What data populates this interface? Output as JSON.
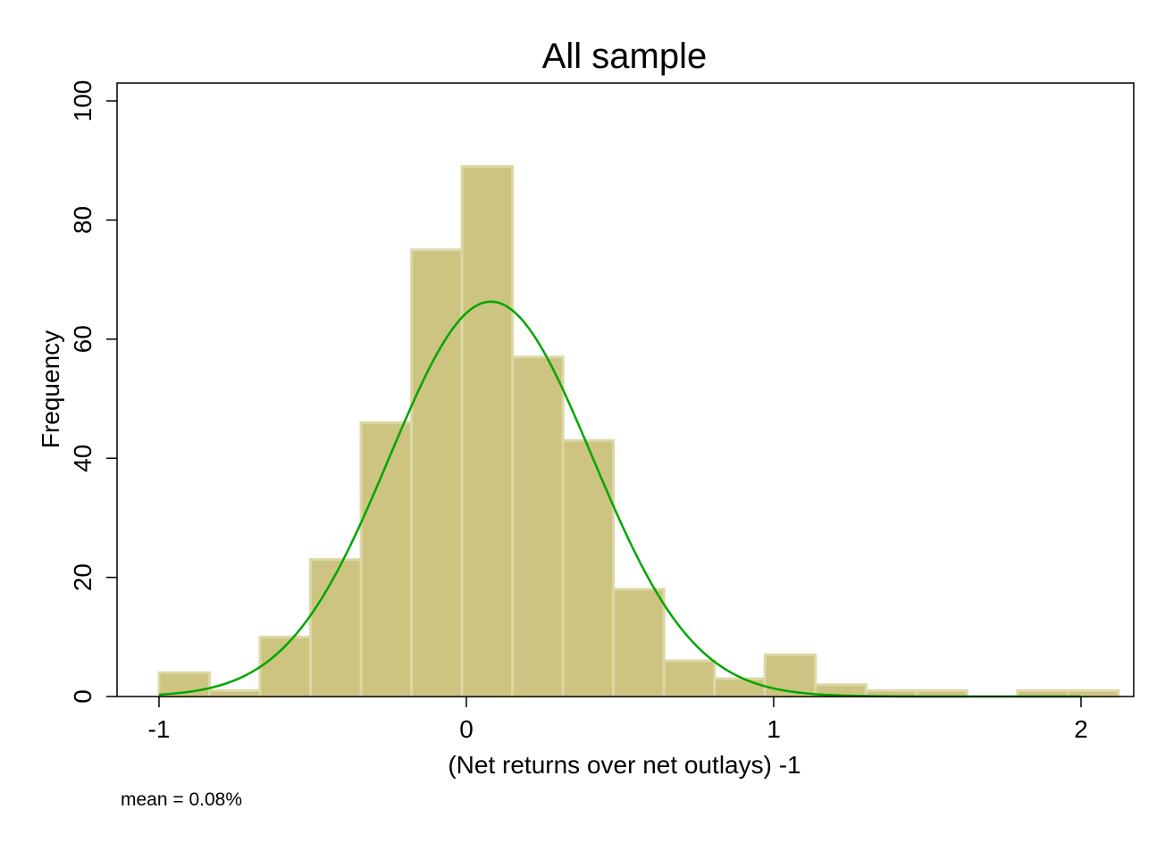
{
  "chart_data": {
    "type": "bar",
    "title": "All sample",
    "xlabel": "(Net returns over net outlays) -1",
    "ylabel": "Frequency",
    "note": "mean = 0.08%",
    "xlim": [
      -1.14,
      2.17
    ],
    "ylim": [
      0,
      103
    ],
    "x_ticks": [
      -1,
      0,
      1,
      2
    ],
    "x_tick_labels": [
      "-1",
      "0",
      "1",
      "2"
    ],
    "y_ticks": [
      0,
      20,
      40,
      60,
      80,
      100
    ],
    "y_tick_labels": [
      "0",
      "20",
      "40",
      "60",
      "80",
      "100"
    ],
    "bin_width": 0.1643,
    "bins": [
      {
        "start": -1.0,
        "end": -0.8357,
        "frequency": 4
      },
      {
        "start": -0.8357,
        "end": -0.6714,
        "frequency": 1
      },
      {
        "start": -0.6714,
        "end": -0.5071,
        "frequency": 10
      },
      {
        "start": -0.5071,
        "end": -0.3428,
        "frequency": 23
      },
      {
        "start": -0.3428,
        "end": -0.1785,
        "frequency": 46
      },
      {
        "start": -0.1785,
        "end": -0.0142,
        "frequency": 75
      },
      {
        "start": -0.0142,
        "end": 0.1501,
        "frequency": 89
      },
      {
        "start": 0.1501,
        "end": 0.3144,
        "frequency": 57
      },
      {
        "start": 0.3144,
        "end": 0.4787,
        "frequency": 43
      },
      {
        "start": 0.4787,
        "end": 0.643,
        "frequency": 18
      },
      {
        "start": 0.643,
        "end": 0.8073,
        "frequency": 6
      },
      {
        "start": 0.8073,
        "end": 0.9716,
        "frequency": 3
      },
      {
        "start": 0.9716,
        "end": 1.1359,
        "frequency": 7
      },
      {
        "start": 1.1359,
        "end": 1.3002,
        "frequency": 2
      },
      {
        "start": 1.3002,
        "end": 1.4645,
        "frequency": 1
      },
      {
        "start": 1.4645,
        "end": 1.6288,
        "frequency": 1
      },
      {
        "start": 1.6288,
        "end": 1.7931,
        "frequency": 0
      },
      {
        "start": 1.7931,
        "end": 1.9574,
        "frequency": 1
      },
      {
        "start": 1.9574,
        "end": 2.1217,
        "frequency": 1
      }
    ],
    "normal_curve": {
      "mean": 0.08,
      "sd": 0.33,
      "peak": 66.3,
      "x_range": [
        -1.0,
        2.0
      ]
    },
    "grid": false,
    "colors": {
      "bar_fill": "#CCC480",
      "bar_edge": "#DCD8A6",
      "curve": "#00A600",
      "axis": "#000000",
      "background": "#FFFFFF"
    }
  }
}
